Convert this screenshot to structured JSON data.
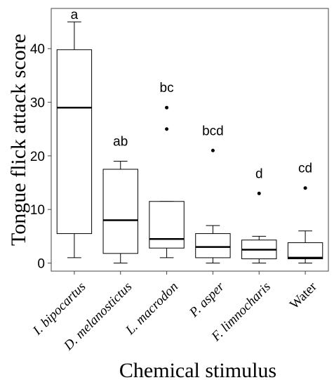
{
  "chart_data": {
    "type": "box",
    "xlabel": "Chemical stimulus",
    "ylabel": "Tongue flick attack score",
    "ylim": [
      -1.5,
      47.5
    ],
    "yticks": [
      0,
      10,
      20,
      30,
      40
    ],
    "grid": false,
    "categories": [
      {
        "label": "I. bipocartus",
        "italic": true
      },
      {
        "label": "D. melanostictus",
        "italic": true
      },
      {
        "label": "L. macrodon",
        "italic": true
      },
      {
        "label": "P. asper",
        "italic": true
      },
      {
        "label": "F. limnocharis",
        "italic": true
      },
      {
        "label": "Water",
        "italic": false
      }
    ],
    "boxes": [
      {
        "min": 1,
        "q1": 5.5,
        "median": 29,
        "q3": 39.8,
        "max": 45,
        "outliers": [],
        "letter": "a"
      },
      {
        "min": 0,
        "q1": 1.8,
        "median": 8,
        "q3": 17.5,
        "max": 19,
        "outliers": [],
        "letter": "ab"
      },
      {
        "min": 1,
        "q1": 2.8,
        "median": 4.5,
        "q3": 11.5,
        "max": 11.5,
        "outliers": [
          25,
          29
        ],
        "letter": "bc"
      },
      {
        "min": 0,
        "q1": 1,
        "median": 3,
        "q3": 5.5,
        "max": 7,
        "outliers": [
          21
        ],
        "letter": "bcd"
      },
      {
        "min": 0,
        "q1": 0.8,
        "median": 2.5,
        "q3": 4.3,
        "max": 5,
        "outliers": [
          13
        ],
        "letter": "d"
      },
      {
        "min": 0,
        "q1": 0.8,
        "median": 1,
        "q3": 3.8,
        "max": 6,
        "outliers": [
          14
        ],
        "letter": "cd"
      }
    ]
  }
}
